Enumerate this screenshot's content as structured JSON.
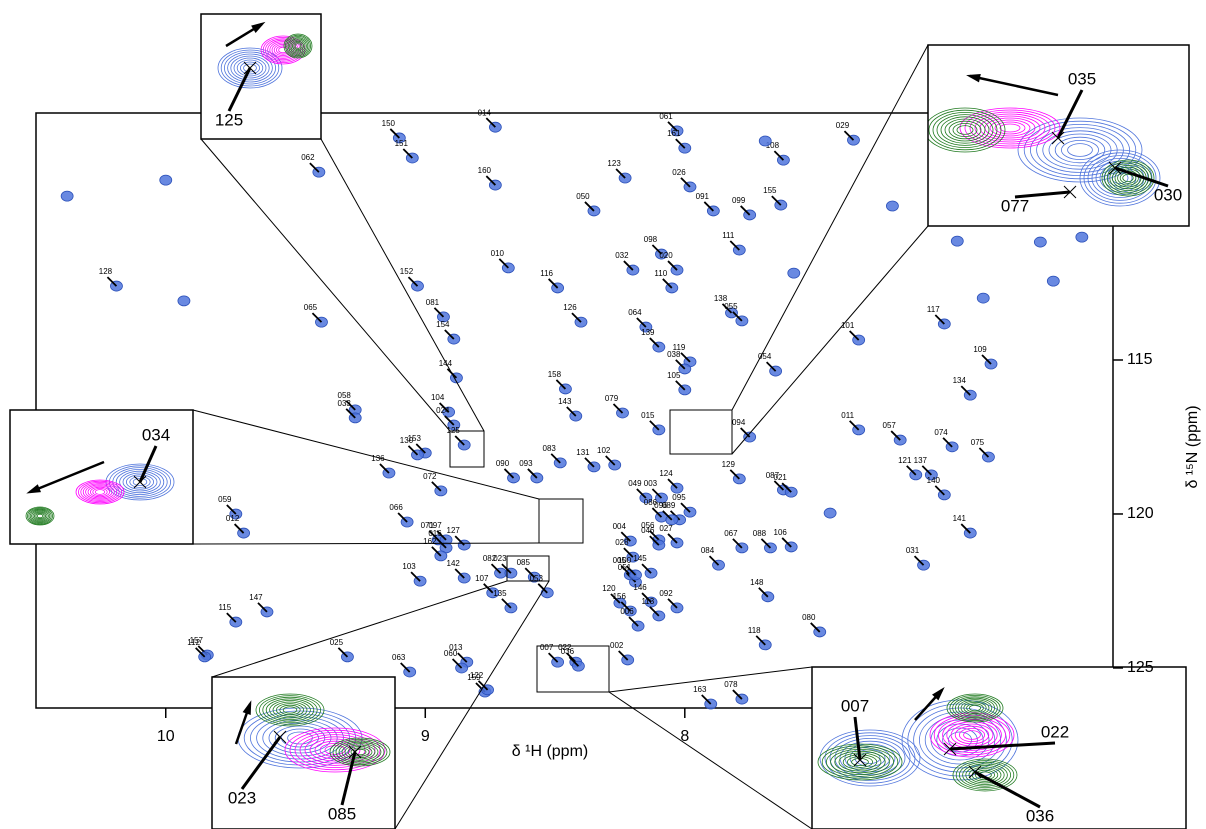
{
  "chart_data": {
    "type": "scatter",
    "x_label": "δ ¹H (ppm)",
    "y_label": "δ ¹⁵N (ppm)",
    "xlim": [
      10.5,
      6.35
    ],
    "ylim": [
      126.3,
      106.98
    ],
    "xticks": [
      10,
      9,
      8
    ],
    "yticks": [
      115,
      120,
      125
    ],
    "color": "#4f74dc",
    "labels": [
      "062",
      "150",
      "151",
      "014",
      "160",
      "061",
      "161",
      "108",
      "029",
      "123",
      "026",
      "050",
      "099",
      "155",
      "091",
      "010",
      "098",
      "032",
      "020",
      "116",
      "111",
      "128",
      "152",
      "081",
      "110",
      "065",
      "154",
      "126",
      "064",
      "138",
      "055",
      "101",
      "117",
      "139",
      "119",
      "038",
      "054",
      "109",
      "144",
      "158",
      "105",
      "134",
      "058",
      "033",
      "104",
      "024",
      "079",
      "143",
      "015",
      "011",
      "057",
      "074",
      "153",
      "130",
      "125",
      "090",
      "093",
      "083",
      "131",
      "102",
      "094",
      "075",
      "129",
      "087",
      "021",
      "136",
      "072",
      "124",
      "049",
      "003",
      "121",
      "137",
      "140",
      "095",
      "086",
      "089",
      "096",
      "059",
      "066",
      "141",
      "071",
      "097",
      "016",
      "012",
      "127",
      "004",
      "056",
      "046",
      "027",
      "067",
      "088",
      "106",
      "084",
      "028",
      "005",
      "145",
      "051",
      "100",
      "162",
      "031",
      "082",
      "023",
      "085",
      "103",
      "142",
      "107",
      "053",
      "148",
      "120",
      "146",
      "092",
      "156",
      "113",
      "135",
      "115",
      "147",
      "080",
      "006",
      "157",
      "112",
      "025",
      "118",
      "007",
      "022",
      "036",
      "002",
      "013",
      "060",
      "063",
      "159",
      "122",
      "163",
      "078",
      null,
      null,
      null,
      null,
      null,
      null,
      null,
      null,
      null,
      null,
      null,
      null
    ],
    "x": [
      9.41,
      9.1,
      9.05,
      8.73,
      8.73,
      8.03,
      8.0,
      7.62,
      7.35,
      8.23,
      7.98,
      8.35,
      7.75,
      7.63,
      7.89,
      8.68,
      8.09,
      8.2,
      8.03,
      8.49,
      7.79,
      10.19,
      9.03,
      8.93,
      8.05,
      9.4,
      8.89,
      8.4,
      8.15,
      7.82,
      7.78,
      7.33,
      7.0,
      8.1,
      7.98,
      8.0,
      7.65,
      6.82,
      8.88,
      8.46,
      8.0,
      6.9,
      9.27,
      9.27,
      8.91,
      8.89,
      8.24,
      8.42,
      8.1,
      7.33,
      7.17,
      6.97,
      9.0,
      9.03,
      8.85,
      8.66,
      8.57,
      8.48,
      8.35,
      8.27,
      7.75,
      6.83,
      7.79,
      7.62,
      7.59,
      9.14,
      8.94,
      8.03,
      8.15,
      8.09,
      7.11,
      7.05,
      7.0,
      7.98,
      8.09,
      8.02,
      8.05,
      9.73,
      9.07,
      6.9,
      8.95,
      8.92,
      8.92,
      9.7,
      8.85,
      8.21,
      8.1,
      8.1,
      8.03,
      7.78,
      7.67,
      7.59,
      7.87,
      8.2,
      8.21,
      8.13,
      8.19,
      8.19,
      8.94,
      7.08,
      8.71,
      8.67,
      8.58,
      9.02,
      8.85,
      8.74,
      8.53,
      7.68,
      8.25,
      8.13,
      8.03,
      8.21,
      8.1,
      8.67,
      9.73,
      9.61,
      7.48,
      8.18,
      9.84,
      9.85,
      9.3,
      7.69,
      8.49,
      8.42,
      8.41,
      8.22,
      8.84,
      8.86,
      9.06,
      8.77,
      8.76,
      7.9,
      7.78,
      10.38,
      10.0,
      9.93,
      7.69,
      6.95,
      6.63,
      6.47,
      7.58,
      6.85,
      6.58,
      7.2,
      7.44
    ],
    "values": [
      108.9,
      107.79,
      108.44,
      107.44,
      109.32,
      107.56,
      108.12,
      108.51,
      107.86,
      109.09,
      109.38,
      110.16,
      110.29,
      109.97,
      110.16,
      112.01,
      111.56,
      112.08,
      112.08,
      112.66,
      111.43,
      112.6,
      112.6,
      113.6,
      112.66,
      113.77,
      114.32,
      113.77,
      113.93,
      113.47,
      113.73,
      114.35,
      113.83,
      114.58,
      115.06,
      115.29,
      115.36,
      115.13,
      115.58,
      115.94,
      115.97,
      116.14,
      116.62,
      116.88,
      116.69,
      117.11,
      116.72,
      116.82,
      117.27,
      117.27,
      117.6,
      117.82,
      118.02,
      118.08,
      117.76,
      118.83,
      118.83,
      118.34,
      118.47,
      118.41,
      117.5,
      118.15,
      118.86,
      119.22,
      119.29,
      118.67,
      119.25,
      119.16,
      119.48,
      119.48,
      118.73,
      118.73,
      119.38,
      119.94,
      120.1,
      120.19,
      120.19,
      120.0,
      120.26,
      120.62,
      120.84,
      120.84,
      121.1,
      120.62,
      121.01,
      120.88,
      120.84,
      121.01,
      120.94,
      121.1,
      121.1,
      121.07,
      121.66,
      121.4,
      121.98,
      121.92,
      122.21,
      121.98,
      121.36,
      121.66,
      121.92,
      121.92,
      122.05,
      122.18,
      122.08,
      122.56,
      122.56,
      122.69,
      122.89,
      122.86,
      123.05,
      123.15,
      123.31,
      123.05,
      123.51,
      123.18,
      123.83,
      123.64,
      124.58,
      124.64,
      124.64,
      124.25,
      124.81,
      124.81,
      124.94,
      124.74,
      124.81,
      125.0,
      125.13,
      125.78,
      125.71,
      126.17,
      126.01,
      109.68,
      109.16,
      113.08,
      107.89,
      111.14,
      111.17,
      111.01,
      112.18,
      112.99,
      112.44,
      110.0,
      119.97
    ],
    "insets": [
      {
        "labels": [
          "125"
        ]
      },
      {
        "labels": [
          "035",
          "077",
          "030"
        ]
      },
      {
        "labels": [
          "034"
        ]
      },
      {
        "labels": [
          "023",
          "085"
        ]
      },
      {
        "labels": [
          "007",
          "022",
          "036"
        ]
      }
    ]
  }
}
